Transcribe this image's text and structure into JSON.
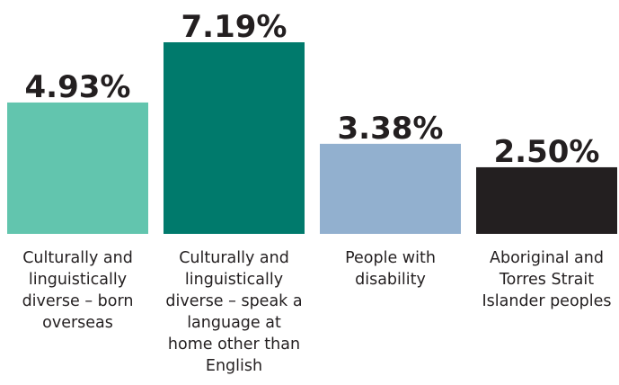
{
  "chart_data": {
    "type": "bar",
    "title": "",
    "xlabel": "",
    "ylabel": "",
    "ylim": [
      0,
      7.19
    ],
    "grid": false,
    "legend": "none",
    "categories": [
      [
        "Culturally and",
        "linguistically",
        "diverse – born",
        "overseas"
      ],
      [
        "Culturally and",
        "linguistically",
        "diverse – speak a",
        "language at",
        "home other than",
        "English"
      ],
      [
        "People with",
        "disability"
      ],
      [
        "Aboriginal and",
        "Torres Strait",
        "Islander peoples"
      ]
    ],
    "values": [
      4.93,
      7.19,
      3.38,
      2.5
    ],
    "value_labels": [
      "4.93%",
      "7.19%",
      "3.38%",
      "2.50%"
    ],
    "colors": [
      "#62c5ae",
      "#007a6c",
      "#92b0cf",
      "#231f20"
    ]
  }
}
